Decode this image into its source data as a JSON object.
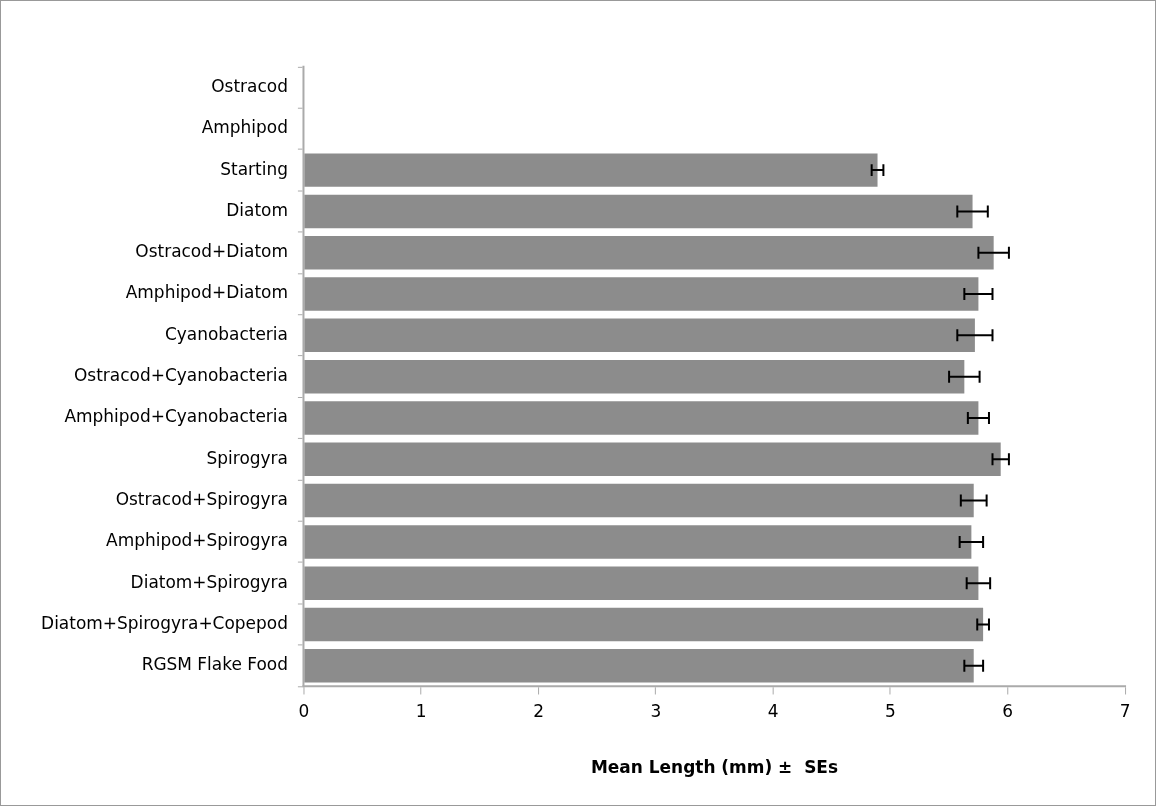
{
  "chart_data": {
    "type": "bar",
    "orientation": "horizontal",
    "categories": [
      "Ostracod",
      "Amphipod",
      "Starting",
      "Diatom",
      "Ostracod+Diatom",
      "Amphipod+Diatom",
      "Cyanobacteria",
      "Ostracod+Cyanobacteria",
      "Amphipod+Cyanobacteria",
      "Spirogyra",
      "Ostracod+Spirogyra",
      "Amphipod+Spirogyra",
      "Diatom+Spirogyra",
      "Diatom+Spirogyra+Copepod",
      "RGSM Flake Food"
    ],
    "values": [
      null,
      null,
      4.89,
      5.7,
      5.88,
      5.75,
      5.72,
      5.63,
      5.75,
      5.94,
      5.71,
      5.69,
      5.75,
      5.79,
      5.71
    ],
    "errors": [
      null,
      null,
      0.05,
      0.13,
      0.13,
      0.12,
      0.15,
      0.13,
      0.09,
      0.07,
      0.11,
      0.1,
      0.1,
      0.05,
      0.08
    ],
    "color": "#8c8c8c",
    "xlabel": "Mean Length (mm) ±  SEs",
    "xlim": [
      0,
      7
    ],
    "xticks": [
      0,
      1,
      2,
      3,
      4,
      5,
      6,
      7
    ],
    "grid": false,
    "legend": false
  }
}
